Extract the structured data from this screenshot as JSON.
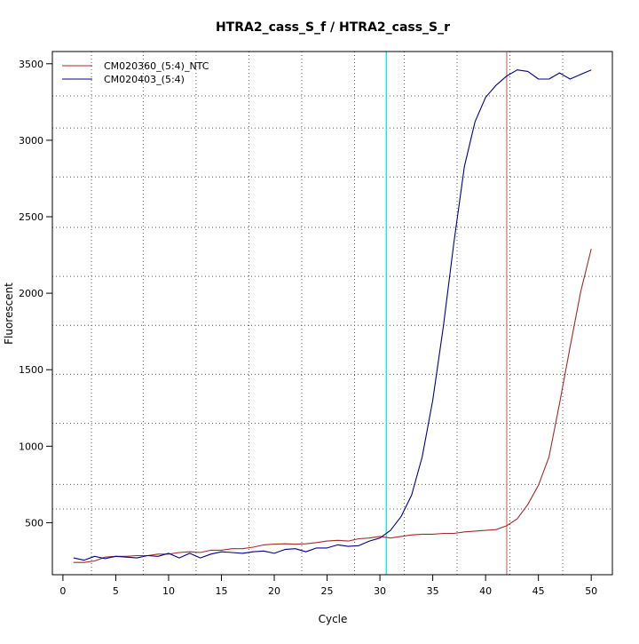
{
  "chart_data": {
    "type": "line",
    "title": "HTRA2_cass_S_f / HTRA2_cass_S_r",
    "xlabel": "Cycle",
    "ylabel": "Fluorescent",
    "xlim": [
      -1,
      52
    ],
    "ylim": [
      160,
      3580
    ],
    "x_ticks": [
      0,
      5,
      10,
      15,
      20,
      25,
      30,
      35,
      40,
      45,
      50
    ],
    "y_ticks": [
      500,
      1000,
      1500,
      2000,
      2500,
      3000,
      3500
    ],
    "grid": "dotted",
    "grid_x": [
      2.7,
      7.6,
      12.6,
      17.6,
      22.6,
      27.6,
      32.3,
      37.3,
      42.3,
      47.3
    ],
    "grid_y": [
      590,
      750,
      1150,
      1470,
      1790,
      2110,
      2430,
      2760,
      3080,
      3290
    ],
    "legend_position": "top-left",
    "markers": [
      {
        "x": 30.6,
        "color": "#00e5ee",
        "orientation": "vertical"
      },
      {
        "x": 42.0,
        "color": "#cd7f77",
        "orientation": "vertical"
      }
    ],
    "series": [
      {
        "name": "CM020360_(5:4)_NTC",
        "color": "#a52a2a",
        "x": [
          1,
          2,
          3,
          4,
          5,
          6,
          7,
          8,
          9,
          10,
          11,
          12,
          13,
          14,
          15,
          16,
          17,
          18,
          19,
          20,
          21,
          22,
          23,
          24,
          25,
          26,
          27,
          28,
          29,
          30,
          31,
          32,
          33,
          34,
          35,
          36,
          37,
          38,
          39,
          40,
          41,
          42,
          43,
          44,
          45,
          46,
          47,
          48,
          49,
          50
        ],
        "values": [
          240,
          240,
          250,
          275,
          280,
          280,
          285,
          285,
          295,
          295,
          305,
          310,
          305,
          320,
          320,
          330,
          330,
          340,
          355,
          360,
          362,
          360,
          362,
          370,
          380,
          385,
          380,
          395,
          400,
          410,
          400,
          410,
          420,
          425,
          425,
          430,
          430,
          440,
          445,
          450,
          455,
          480,
          525,
          620,
          745,
          930,
          1280,
          1650,
          2010,
          2290
        ]
      },
      {
        "name": "CM020403_(5:4)",
        "color": "#00008b",
        "x": [
          1,
          2,
          3,
          4,
          5,
          6,
          7,
          8,
          9,
          10,
          11,
          12,
          13,
          14,
          15,
          16,
          17,
          18,
          19,
          20,
          21,
          22,
          23,
          24,
          25,
          26,
          27,
          28,
          29,
          30,
          31,
          32,
          33,
          34,
          35,
          36,
          37,
          38,
          39,
          40,
          41,
          42,
          43,
          44,
          45,
          46,
          47,
          48,
          49,
          50
        ],
        "values": [
          270,
          255,
          280,
          265,
          280,
          275,
          270,
          285,
          280,
          300,
          270,
          300,
          270,
          295,
          310,
          305,
          300,
          310,
          315,
          300,
          325,
          330,
          310,
          335,
          335,
          355,
          345,
          350,
          380,
          400,
          450,
          540,
          680,
          930,
          1300,
          1780,
          2330,
          2830,
          3120,
          3280,
          3360,
          3420,
          3460,
          3450,
          3400,
          3400,
          3440,
          3400,
          3430,
          3460
        ]
      }
    ]
  }
}
